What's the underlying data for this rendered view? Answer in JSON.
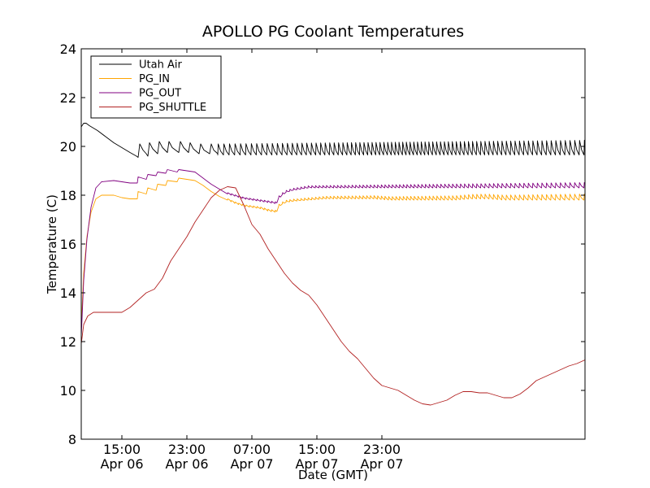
{
  "chart_data": {
    "type": "line",
    "title": "APOLLO PG Coolant Temperatures",
    "xlabel": "Date (GMT)",
    "ylabel": "Temperature (C)",
    "x_unit": "hours since Apr 06 10:00 GMT",
    "xlim": [
      0,
      62
    ],
    "ylim": [
      8,
      24
    ],
    "yticks": [
      8,
      10,
      12,
      14,
      16,
      18,
      20,
      22,
      24
    ],
    "xticks": [
      {
        "x": 5,
        "line1": "15:00",
        "line2": "Apr 06"
      },
      {
        "x": 13,
        "line1": "23:00",
        "line2": "Apr 06"
      },
      {
        "x": 21,
        "line1": "07:00",
        "line2": "Apr 07"
      },
      {
        "x": 29,
        "line1": "15:00",
        "line2": "Apr 07"
      },
      {
        "x": 37,
        "line1": "23:00",
        "line2": "Apr 07"
      }
    ],
    "grid": false,
    "legend_position": "top-left",
    "series": [
      {
        "name": "Utah Air",
        "color": "#000000",
        "points": [
          [
            0,
            20.8
          ],
          [
            0.3,
            20.95
          ],
          [
            0.6,
            20.95
          ],
          [
            1.0,
            20.85
          ],
          [
            2.0,
            20.65
          ],
          [
            3.0,
            20.4
          ],
          [
            4.0,
            20.15
          ],
          [
            5.0,
            19.95
          ],
          [
            6.0,
            19.75
          ],
          [
            6.8,
            19.6
          ],
          [
            7.0,
            19.55
          ],
          [
            7.2,
            20.1
          ],
          [
            7.6,
            19.85
          ],
          [
            8.0,
            19.7
          ],
          [
            8.2,
            19.6
          ],
          [
            8.4,
            20.15
          ],
          [
            8.8,
            19.9
          ],
          [
            9.4,
            19.7
          ],
          [
            9.6,
            20.2
          ],
          [
            10.0,
            19.95
          ],
          [
            10.6,
            19.75
          ],
          [
            10.8,
            20.2
          ],
          [
            11.2,
            19.95
          ],
          [
            12.0,
            19.75
          ],
          [
            12.2,
            20.2
          ],
          [
            12.6,
            19.95
          ],
          [
            13.2,
            19.75
          ],
          [
            13.4,
            20.15
          ],
          [
            13.8,
            19.9
          ],
          [
            14.5,
            19.7
          ],
          [
            14.7,
            20.1
          ],
          [
            15.1,
            19.85
          ],
          [
            15.8,
            19.7
          ],
          [
            16.0,
            20.1
          ],
          [
            16.3,
            19.85
          ],
          [
            16.8,
            19.7
          ]
        ],
        "oscillation": {
          "start": 16.8,
          "end": 62,
          "base": 19.65,
          "amplitude_start": 0.45,
          "amplitude_end": 0.6,
          "period_start": 0.7,
          "period_mid": 0.45,
          "period_end": 0.6
        }
      },
      {
        "name": "PG_IN",
        "color": "#FFA500",
        "points": [
          [
            0,
            12.6
          ],
          [
            0.3,
            14.8
          ],
          [
            0.7,
            16.3
          ],
          [
            1.2,
            17.3
          ],
          [
            1.8,
            17.85
          ],
          [
            2.5,
            18.0
          ],
          [
            4.0,
            18.0
          ],
          [
            5.0,
            17.9
          ],
          [
            6.0,
            17.85
          ],
          [
            6.9,
            17.85
          ],
          [
            7.0,
            18.15
          ],
          [
            8.0,
            18.05
          ],
          [
            8.2,
            18.3
          ],
          [
            9.2,
            18.2
          ],
          [
            9.4,
            18.45
          ],
          [
            10.4,
            18.4
          ],
          [
            10.6,
            18.6
          ],
          [
            11.8,
            18.55
          ],
          [
            12.0,
            18.7
          ],
          [
            13.0,
            18.65
          ],
          [
            14.0,
            18.6
          ],
          [
            15.0,
            18.4
          ],
          [
            16.0,
            18.15
          ],
          [
            17.0,
            17.95
          ],
          [
            18.0,
            17.8
          ],
          [
            19.0,
            17.65
          ],
          [
            20.0,
            17.55
          ],
          [
            21.0,
            17.5
          ],
          [
            22.0,
            17.45
          ],
          [
            23.0,
            17.35
          ],
          [
            24.0,
            17.3
          ],
          [
            24.3,
            17.55
          ],
          [
            25.0,
            17.7
          ],
          [
            26.0,
            17.75
          ],
          [
            28.0,
            17.8
          ],
          [
            30.0,
            17.85
          ],
          [
            32.0,
            17.85
          ],
          [
            34.0,
            17.85
          ],
          [
            36.0,
            17.85
          ],
          [
            38.0,
            17.8
          ],
          [
            40.0,
            17.8
          ],
          [
            42.0,
            17.8
          ],
          [
            44.0,
            17.8
          ],
          [
            46.0,
            17.8
          ],
          [
            48.0,
            17.85
          ],
          [
            50.0,
            17.85
          ],
          [
            52.0,
            17.8
          ],
          [
            54.0,
            17.8
          ],
          [
            56.0,
            17.8
          ],
          [
            58.0,
            17.8
          ],
          [
            60.0,
            17.8
          ],
          [
            62.0,
            17.8
          ]
        ],
        "oscillation": {
          "start": 18.0,
          "end": 62,
          "base": 0,
          "amplitude_start": 0.05,
          "amplitude_end": 0.25,
          "period_start": 0.45,
          "period_mid": 0.45,
          "period_end": 0.6
        }
      },
      {
        "name": "PG_OUT",
        "color": "#800080",
        "points": [
          [
            0,
            12.2
          ],
          [
            0.3,
            14.5
          ],
          [
            0.7,
            16.2
          ],
          [
            1.2,
            17.5
          ],
          [
            1.8,
            18.3
          ],
          [
            2.5,
            18.55
          ],
          [
            4.0,
            18.6
          ],
          [
            5.0,
            18.55
          ],
          [
            6.0,
            18.5
          ],
          [
            6.9,
            18.5
          ],
          [
            7.0,
            18.75
          ],
          [
            8.0,
            18.65
          ],
          [
            8.2,
            18.85
          ],
          [
            9.2,
            18.8
          ],
          [
            9.4,
            18.95
          ],
          [
            10.4,
            18.9
          ],
          [
            10.6,
            19.05
          ],
          [
            11.8,
            18.95
          ],
          [
            12.0,
            19.05
          ],
          [
            13.0,
            19.0
          ],
          [
            14.0,
            18.95
          ],
          [
            15.0,
            18.7
          ],
          [
            16.0,
            18.45
          ],
          [
            17.0,
            18.25
          ],
          [
            18.0,
            18.05
          ],
          [
            19.0,
            17.95
          ],
          [
            20.0,
            17.85
          ],
          [
            21.0,
            17.8
          ],
          [
            22.0,
            17.75
          ],
          [
            23.0,
            17.7
          ],
          [
            24.0,
            17.65
          ],
          [
            24.3,
            17.9
          ],
          [
            25.0,
            18.1
          ],
          [
            26.0,
            18.2
          ],
          [
            28.0,
            18.3
          ],
          [
            30.0,
            18.3
          ],
          [
            32.0,
            18.3
          ],
          [
            34.0,
            18.3
          ],
          [
            36.0,
            18.3
          ],
          [
            38.0,
            18.3
          ],
          [
            40.0,
            18.3
          ],
          [
            42.0,
            18.3
          ],
          [
            44.0,
            18.3
          ],
          [
            46.0,
            18.3
          ],
          [
            48.0,
            18.3
          ],
          [
            50.0,
            18.3
          ],
          [
            52.0,
            18.3
          ],
          [
            54.0,
            18.3
          ],
          [
            56.0,
            18.3
          ],
          [
            58.0,
            18.3
          ],
          [
            60.0,
            18.3
          ],
          [
            62.0,
            18.3
          ]
        ],
        "oscillation": {
          "start": 18.0,
          "end": 62,
          "base": 0,
          "amplitude_start": 0.05,
          "amplitude_end": 0.22,
          "period_start": 0.45,
          "period_mid": 0.45,
          "period_end": 0.6
        }
      },
      {
        "name": "PG_SHUTTLE",
        "color": "#B22222",
        "points": [
          [
            0,
            11.9
          ],
          [
            0.3,
            12.7
          ],
          [
            0.8,
            13.05
          ],
          [
            1.5,
            13.2
          ],
          [
            2.5,
            13.2
          ],
          [
            4.0,
            13.2
          ],
          [
            5.0,
            13.2
          ],
          [
            6.0,
            13.4
          ],
          [
            7.0,
            13.7
          ],
          [
            8.0,
            14.0
          ],
          [
            9.0,
            14.15
          ],
          [
            10.0,
            14.6
          ],
          [
            11.0,
            15.3
          ],
          [
            12.0,
            15.8
          ],
          [
            13.0,
            16.3
          ],
          [
            14.0,
            16.9
          ],
          [
            15.0,
            17.4
          ],
          [
            16.0,
            17.9
          ],
          [
            17.0,
            18.2
          ],
          [
            18.0,
            18.35
          ],
          [
            19.0,
            18.3
          ],
          [
            20.0,
            17.6
          ],
          [
            21.0,
            16.8
          ],
          [
            22.0,
            16.4
          ],
          [
            23.0,
            15.8
          ],
          [
            24.0,
            15.3
          ],
          [
            25.0,
            14.8
          ],
          [
            26.0,
            14.4
          ],
          [
            27.0,
            14.1
          ],
          [
            28.0,
            13.9
          ],
          [
            29.0,
            13.5
          ],
          [
            30.0,
            13.0
          ],
          [
            31.0,
            12.5
          ],
          [
            32.0,
            12.0
          ],
          [
            33.0,
            11.6
          ],
          [
            34.0,
            11.3
          ],
          [
            35.0,
            10.9
          ],
          [
            36.0,
            10.5
          ],
          [
            37.0,
            10.2
          ],
          [
            38.0,
            10.1
          ],
          [
            39.0,
            10.0
          ],
          [
            40.0,
            9.8
          ],
          [
            41.0,
            9.6
          ],
          [
            42.0,
            9.45
          ],
          [
            43.0,
            9.4
          ],
          [
            44.0,
            9.5
          ],
          [
            45.0,
            9.6
          ],
          [
            46.0,
            9.8
          ],
          [
            47.0,
            9.95
          ],
          [
            48.0,
            9.95
          ],
          [
            49.0,
            9.9
          ],
          [
            50.0,
            9.9
          ],
          [
            51.0,
            9.8
          ],
          [
            52.0,
            9.7
          ],
          [
            53.0,
            9.7
          ],
          [
            54.0,
            9.85
          ],
          [
            55.0,
            10.1
          ],
          [
            56.0,
            10.4
          ],
          [
            57.0,
            10.55
          ],
          [
            58.0,
            10.7
          ],
          [
            59.0,
            10.85
          ],
          [
            60.0,
            11.0
          ],
          [
            61.0,
            11.1
          ],
          [
            62.0,
            11.25
          ]
        ]
      }
    ]
  }
}
